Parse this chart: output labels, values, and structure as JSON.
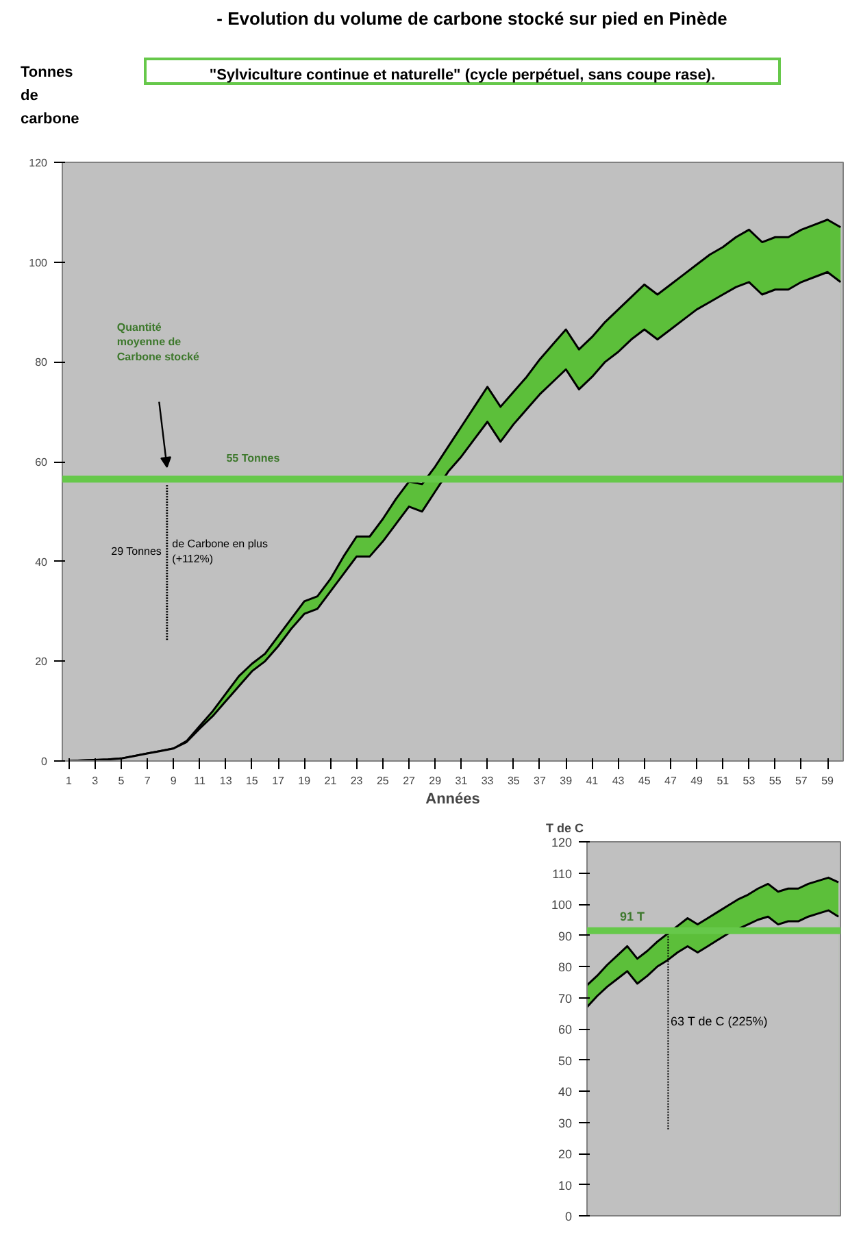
{
  "chart_data": [
    {
      "type": "area",
      "title": "-  Evolution du volume de carbone stocké sur pied en Pinède",
      "subtitle": "\"Sylviculture continue et naturelle\" (cycle perpétuel, sans coupe rase).",
      "ylabel": "Tonnes de carbone",
      "xlabel": "Années",
      "x": [
        1,
        2,
        3,
        4,
        5,
        6,
        7,
        8,
        9,
        10,
        11,
        12,
        13,
        14,
        15,
        16,
        17,
        18,
        19,
        20,
        21,
        22,
        23,
        24,
        25,
        26,
        27,
        28,
        29,
        30,
        31,
        32,
        33,
        34,
        35,
        36,
        37,
        38,
        39,
        40,
        41,
        42,
        43,
        44,
        45,
        46,
        47,
        48,
        49,
        50,
        51,
        52,
        53,
        54,
        55,
        56,
        57,
        58,
        59,
        60
      ],
      "series": [
        {
          "color": "#5cbf3a",
          "values": [
            0,
            0.1,
            0.2,
            0.3,
            0.5,
            1,
            1.5,
            2,
            2.5,
            4,
            7,
            10,
            13.5,
            17,
            19.5,
            21.5,
            25,
            28.5,
            32,
            33,
            36.5,
            41,
            45,
            45,
            48.5,
            52.5,
            56,
            55.5,
            59,
            63,
            67,
            71,
            75,
            71,
            74,
            77,
            80.5,
            83.5,
            86.5,
            82.5,
            85,
            88,
            90.5,
            93,
            95.5,
            93.5,
            95.5,
            97.5,
            99.5,
            101.5,
            103,
            105,
            106.5,
            104,
            105,
            105,
            106.5,
            107.5,
            108.5,
            107
          ]
        },
        {
          "color": "#c0c0c0",
          "values": [
            0,
            0.1,
            0.2,
            0.3,
            0.5,
            1,
            1.5,
            2,
            2.5,
            3.8,
            6.5,
            9,
            12,
            15,
            18,
            20,
            23,
            26.5,
            29.5,
            30.5,
            34,
            37.5,
            41,
            41,
            44,
            47.5,
            51,
            50,
            54,
            58,
            61,
            64.5,
            68,
            64,
            67.5,
            70.5,
            73.5,
            76,
            78.5,
            74.5,
            77,
            80,
            82,
            84.5,
            86.5,
            84.5,
            86.5,
            88.5,
            90.5,
            92,
            93.5,
            95,
            96,
            93.5,
            94.5,
            94.5,
            96,
            97,
            98,
            96
          ]
        }
      ],
      "xlim": [
        0.5,
        60.2
      ],
      "ylim": [
        0,
        120
      ],
      "xticks": [
        1,
        3,
        5,
        7,
        9,
        11,
        13,
        15,
        17,
        19,
        21,
        23,
        25,
        27,
        29,
        31,
        33,
        35,
        37,
        39,
        41,
        43,
        45,
        47,
        49,
        51,
        53,
        55,
        57,
        59
      ],
      "yticks": [
        0,
        20,
        40,
        60,
        80,
        100,
        120
      ],
      "ref_lines": [
        {
          "axis": "y",
          "value": 56.5,
          "label": "55 Tonnes",
          "color": "#66c84a"
        },
        {
          "axis": "x",
          "value": 8.5,
          "color": "#000000",
          "line_style": "dotted"
        }
      ],
      "annotations": [
        "Quantité moyenne de Carbone stocké",
        "29 Tonnes",
        "de Carbone en plus (+112%)"
      ],
      "grid": false
    },
    {
      "type": "area",
      "ylabel": "T de C",
      "categories": [
        null,
        null,
        null,
        null,
        null,
        null,
        null,
        null,
        null,
        null,
        null,
        null,
        null,
        null,
        null,
        null,
        null,
        null,
        null,
        null,
        null,
        null,
        null,
        null,
        null,
        null
      ],
      "series": [
        {
          "color": "#5cbf3a",
          "values": [
            74,
            77,
            80.5,
            83.5,
            86.5,
            82.5,
            85,
            88,
            90.5,
            93,
            95.5,
            93.5,
            95.5,
            97.5,
            99.5,
            101.5,
            103,
            105,
            106.5,
            104,
            105,
            105,
            106.5,
            107.5,
            108.5,
            107
          ]
        },
        {
          "color": "#c0c0c0",
          "values": [
            67,
            70.5,
            73.5,
            76,
            78.5,
            74.5,
            77,
            80,
            82,
            84.5,
            86.5,
            84.5,
            86.5,
            88.5,
            90.5,
            92,
            93.5,
            95,
            96,
            93.5,
            94.5,
            94.5,
            96,
            97,
            98,
            96
          ]
        }
      ],
      "ylim": [
        0,
        120
      ],
      "yticks": [
        0,
        10,
        20,
        30,
        40,
        50,
        60,
        70,
        80,
        90,
        100,
        110,
        120
      ],
      "ref_lines": [
        {
          "axis": "y",
          "value": 91.5,
          "label": "91 T",
          "color": "#66c84a"
        }
      ],
      "annotations": [
        "63 T de C (225%)"
      ],
      "tick_labels": "y",
      "grid": false
    }
  ]
}
